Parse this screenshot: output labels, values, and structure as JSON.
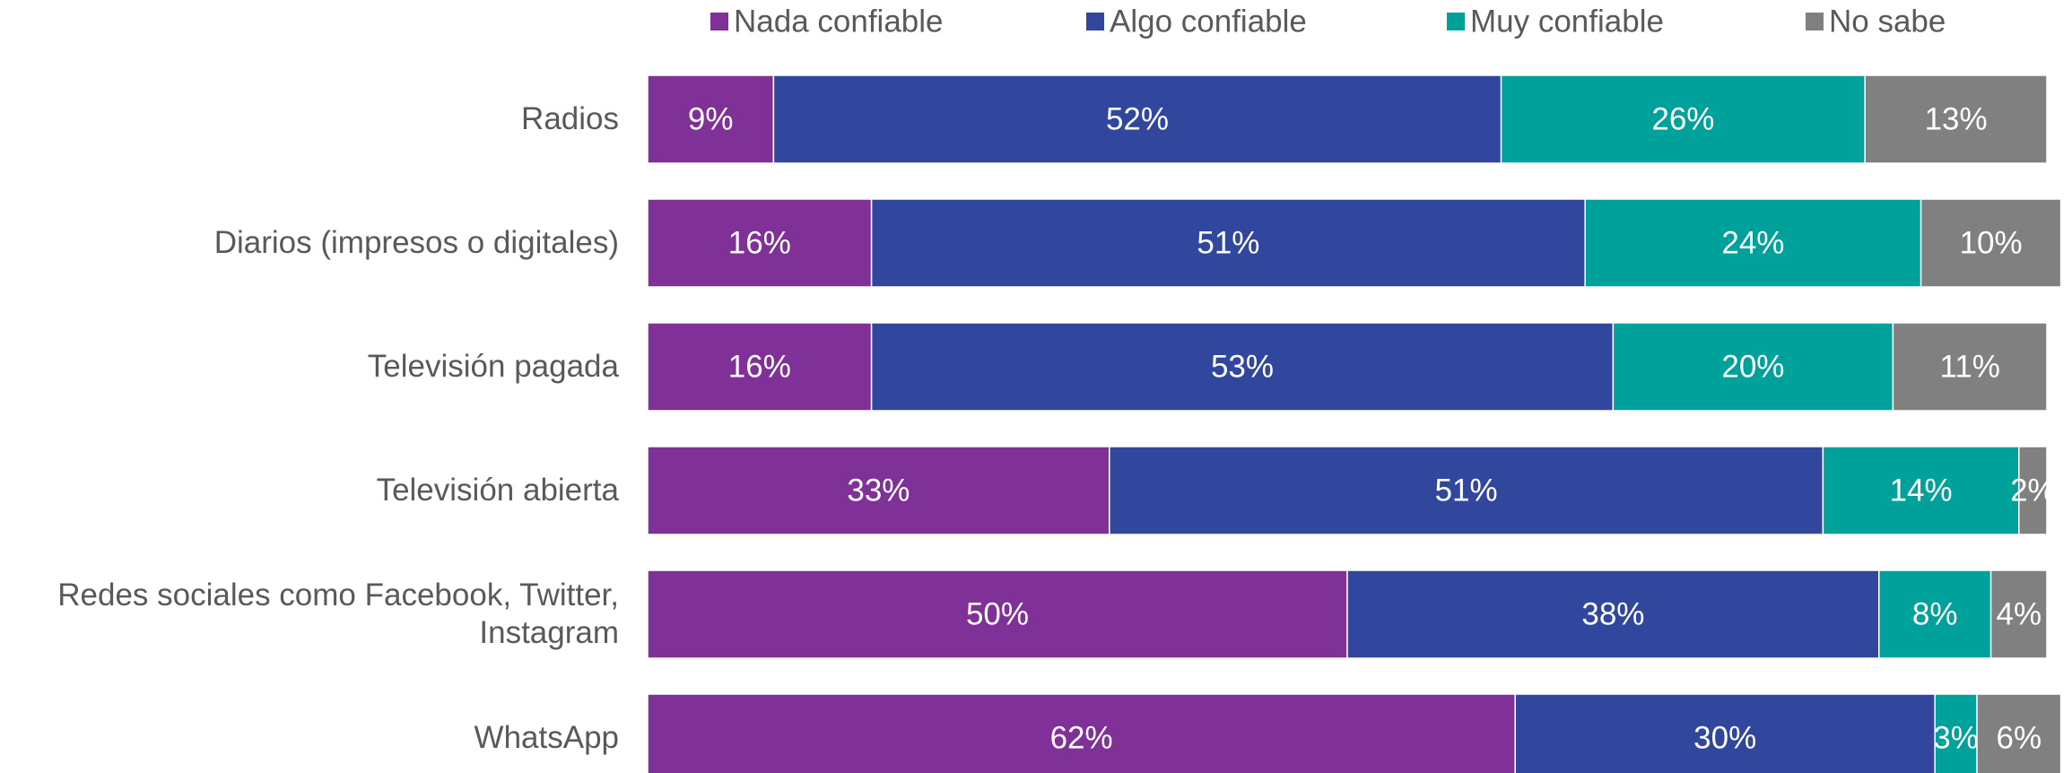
{
  "chart_data": {
    "type": "stacked_barh",
    "categories": [
      "Radios",
      "Diarios (impresos o digitales)",
      "Televisión pagada",
      "Televisión abierta",
      "Redes sociales como Facebook, Twitter, Instagram",
      "WhatsApp"
    ],
    "xlim": [
      0,
      100
    ],
    "legend": "top",
    "series": [
      {
        "name": "Nada confiable",
        "color": "#7f3197",
        "values": [
          9,
          16,
          16,
          33,
          50,
          62
        ],
        "value_labels": [
          "9%",
          "16%",
          "16%",
          "33%",
          "50%",
          "62%"
        ]
      },
      {
        "name": "Algo confiable",
        "color": "#31479e",
        "values": [
          52,
          51,
          53,
          51,
          38,
          30
        ],
        "value_labels": [
          "52%",
          "51%",
          "53%",
          "51%",
          "38%",
          "30%"
        ]
      },
      {
        "name": "Muy confiable",
        "color": "#00a19a",
        "values": [
          26,
          24,
          20,
          14,
          8,
          3
        ],
        "value_labels": [
          "26%",
          "24%",
          "20%",
          "14%",
          "8%",
          "3%"
        ]
      },
      {
        "name": "No sabe",
        "color": "#808080",
        "values": [
          13,
          10,
          11,
          2,
          4,
          6
        ],
        "value_labels": [
          "13%",
          "10%",
          "11%",
          "2%",
          "4%",
          "6%"
        ]
      }
    ]
  }
}
